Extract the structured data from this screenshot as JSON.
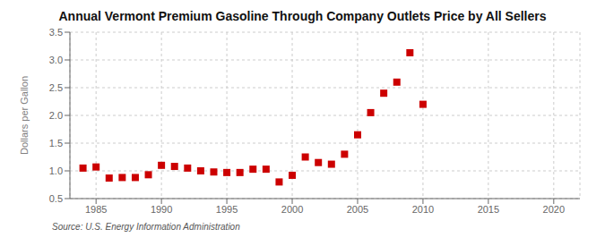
{
  "chart_data": {
    "type": "scatter",
    "title": "Annual Vermont Premium Gasoline Through Company Outlets Price by All Sellers",
    "ylabel": "Dollars per Gallon",
    "source": "Source: U.S. Energy Information Administration",
    "x": [
      1984,
      1985,
      1986,
      1987,
      1988,
      1989,
      1990,
      1991,
      1992,
      1993,
      1994,
      1995,
      1996,
      1997,
      1998,
      1999,
      2000,
      2001,
      2002,
      2003,
      2004,
      2005,
      2006,
      2007,
      2008,
      2009,
      2010
    ],
    "values": [
      1.05,
      1.07,
      0.87,
      0.88,
      0.88,
      0.93,
      1.1,
      1.08,
      1.05,
      1.0,
      0.98,
      0.97,
      0.97,
      1.03,
      1.03,
      0.8,
      0.92,
      1.25,
      1.15,
      1.12,
      1.3,
      1.65,
      2.05,
      2.4,
      2.6,
      3.13,
      2.2
    ],
    "color": "#cc0000",
    "marker": "square",
    "xlim": [
      1983,
      2022
    ],
    "xticks": [
      1985,
      1990,
      1995,
      2000,
      2005,
      2010,
      2015,
      2020
    ],
    "ylim": [
      0.5,
      3.5
    ],
    "yticks": [
      0.5,
      {
        "value": 1,
        "label": "1.0"
      },
      1.5,
      {
        "value": 2,
        "label": "2.0"
      },
      2.5,
      {
        "value": 3,
        "label": "3.0"
      },
      3.5
    ],
    "grid": true
  }
}
